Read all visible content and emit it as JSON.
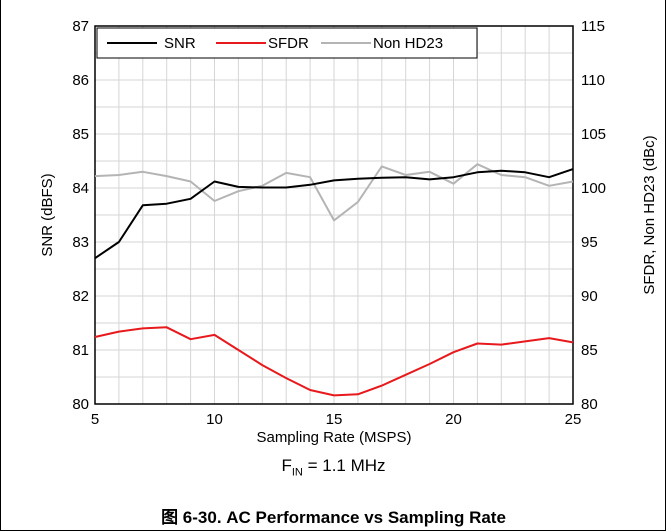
{
  "note": {
    "prefix": "F",
    "sub": "IN",
    "suffix": " = 1.1 MHz"
  },
  "caption": "图 6-30. AC Performance vs Sampling Rate",
  "chart_data": {
    "type": "line",
    "xlabel": "Sampling Rate (MSPS)",
    "ylabel": "SNR (dBFS)",
    "y2label": "SFDR, Non HD23 (dBc)",
    "xlim": [
      5,
      25
    ],
    "ylim": [
      80,
      87
    ],
    "y2lim": [
      80,
      115
    ],
    "xticks": [
      5,
      10,
      15,
      20,
      25
    ],
    "yticks": [
      80,
      81,
      82,
      83,
      84,
      85,
      86,
      87
    ],
    "y2ticks": [
      80,
      85,
      90,
      95,
      100,
      105,
      110,
      115
    ],
    "grid": true,
    "legend_position": "top-left",
    "x": [
      5,
      6,
      7,
      8,
      9,
      10,
      11,
      12,
      13,
      14,
      15,
      16,
      17,
      18,
      19,
      20,
      21,
      22,
      23,
      24,
      25
    ],
    "series": [
      {
        "name": "SNR",
        "axis": "left",
        "color": "#000000",
        "values": [
          82.7,
          83.0,
          83.68,
          83.71,
          83.8,
          84.12,
          84.02,
          84.01,
          84.01,
          84.06,
          84.14,
          84.17,
          84.19,
          84.2,
          84.16,
          84.2,
          84.29,
          84.32,
          84.29,
          84.2,
          84.35
        ]
      },
      {
        "name": "SFDR",
        "axis": "right",
        "color": "#e8191c",
        "values": [
          86.2,
          86.7,
          87.0,
          87.1,
          86.0,
          86.4,
          85.0,
          83.6,
          82.4,
          81.3,
          80.8,
          80.9,
          81.7,
          82.7,
          83.7,
          84.8,
          85.6,
          85.5,
          85.8,
          86.1,
          85.7
        ]
      },
      {
        "name": "Non HD23",
        "axis": "right",
        "color": "#b4b4b4",
        "values": [
          101.1,
          101.2,
          101.5,
          101.1,
          100.6,
          98.8,
          99.7,
          100.2,
          101.4,
          101.0,
          97.0,
          98.7,
          102.0,
          101.2,
          101.5,
          100.4,
          102.2,
          101.2,
          101.0,
          100.2,
          100.6
        ]
      }
    ]
  }
}
